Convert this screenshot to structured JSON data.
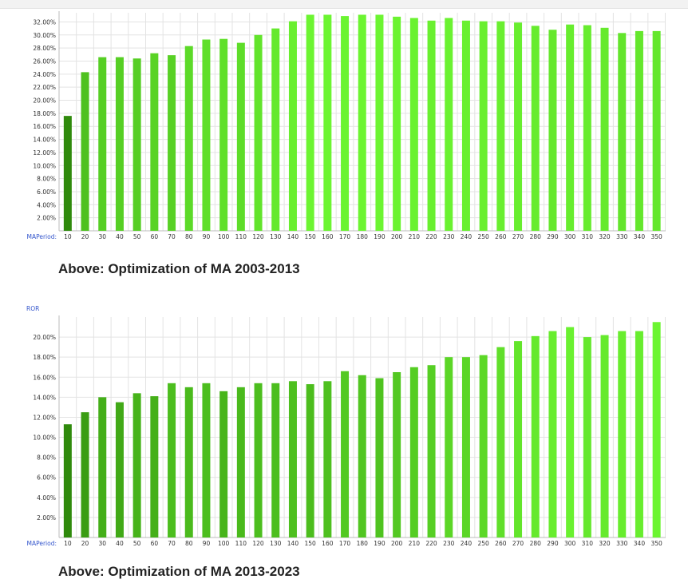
{
  "captions": {
    "first": "Above: Optimization of MA 2003-2013",
    "second": "Above: Optimization of MA 2013-2023"
  },
  "colors": {
    "bar_low": "#2f8a0c",
    "bar_high": "#6cf531",
    "grid": "#e3e3e3",
    "axis_name": "#3355cc"
  },
  "chart_data": [
    {
      "type": "bar",
      "title": "",
      "xlabel": "MAPeriod:",
      "ylabel": "",
      "ylim": [
        0,
        33.4
      ],
      "y_ticks": [
        2,
        4,
        6,
        8,
        10,
        12,
        14,
        16,
        18,
        20,
        22,
        24,
        26,
        28,
        30,
        32
      ],
      "y_tick_labels": [
        "2.00%",
        "4.00%",
        "6.00%",
        "8.00%",
        "10.00%",
        "12.00%",
        "14.00%",
        "16.00%",
        "18.00%",
        "20.00%",
        "22.00%",
        "24.00%",
        "26.00%",
        "28.00%",
        "30.00%",
        "32.00%"
      ],
      "categories": [
        "10",
        "20",
        "30",
        "40",
        "50",
        "60",
        "70",
        "80",
        "90",
        "100",
        "110",
        "120",
        "130",
        "140",
        "150",
        "160",
        "170",
        "180",
        "190",
        "200",
        "210",
        "220",
        "230",
        "240",
        "250",
        "260",
        "270",
        "280",
        "290",
        "300",
        "310",
        "320",
        "330",
        "340",
        "350"
      ],
      "values": [
        17.6,
        24.3,
        26.6,
        26.6,
        26.4,
        27.2,
        26.9,
        28.3,
        29.3,
        29.4,
        28.8,
        30.0,
        31.0,
        32.1,
        33.1,
        33.1,
        32.9,
        33.1,
        33.1,
        32.8,
        32.6,
        32.2,
        32.6,
        32.2,
        32.1,
        32.1,
        31.9,
        31.4,
        30.8,
        31.6,
        31.5,
        31.1,
        30.3,
        30.6,
        30.6
      ],
      "grid": true
    },
    {
      "type": "bar",
      "title": "",
      "xlabel": "MAPeriod:",
      "ylabel": "ROR",
      "ylim": [
        0,
        22
      ],
      "y_ticks": [
        2,
        4,
        6,
        8,
        10,
        12,
        14,
        16,
        18,
        20
      ],
      "y_tick_labels": [
        "2.00%",
        "4.00%",
        "6.00%",
        "8.00%",
        "10.00%",
        "12.00%",
        "14.00%",
        "16.00%",
        "18.00%",
        "20.00%"
      ],
      "categories": [
        "10",
        "20",
        "30",
        "40",
        "50",
        "60",
        "70",
        "80",
        "90",
        "100",
        "110",
        "120",
        "130",
        "140",
        "150",
        "160",
        "170",
        "180",
        "190",
        "200",
        "210",
        "220",
        "230",
        "240",
        "250",
        "260",
        "270",
        "280",
        "290",
        "300",
        "310",
        "320",
        "330",
        "340",
        "350"
      ],
      "values": [
        11.3,
        12.5,
        14.0,
        13.5,
        14.4,
        14.1,
        15.4,
        15.0,
        15.4,
        14.6,
        15.0,
        15.4,
        15.4,
        15.6,
        15.3,
        15.6,
        16.6,
        16.2,
        15.9,
        16.5,
        17.0,
        17.2,
        18.0,
        18.0,
        18.2,
        19.0,
        19.6,
        20.1,
        20.6,
        21.0,
        20.0,
        20.2,
        20.6,
        20.6,
        21.5
      ],
      "grid": true
    }
  ]
}
